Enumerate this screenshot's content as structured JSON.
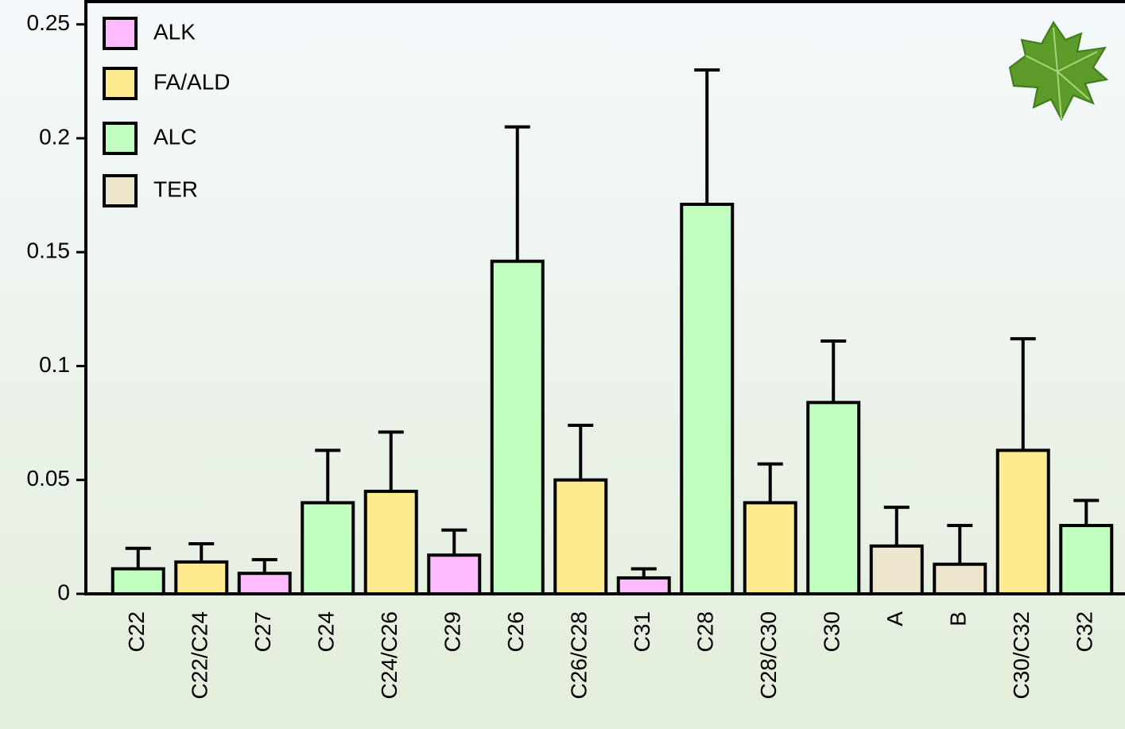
{
  "chart_data": {
    "type": "bar",
    "categories": [
      "C22",
      "C22/C24",
      "C27",
      "C24",
      "C24/C26",
      "C29",
      "C26",
      "C26/C28",
      "C31",
      "C28",
      "C28/C30",
      "C30",
      "A",
      "B",
      "C30/C32",
      "C32"
    ],
    "series": [
      {
        "name": "ALK",
        "color": "#ffbbff",
        "values": [
          null,
          null,
          0.009,
          null,
          null,
          0.017,
          null,
          null,
          0.007,
          null,
          null,
          null,
          null,
          null,
          null,
          null
        ],
        "errors": [
          null,
          null,
          0.006,
          null,
          null,
          0.011,
          null,
          null,
          0.004,
          null,
          null,
          null,
          null,
          null,
          null,
          null
        ]
      },
      {
        "name": "FA/ALD",
        "color": "#ffeb8f",
        "values": [
          null,
          0.014,
          null,
          null,
          0.045,
          null,
          null,
          0.05,
          null,
          null,
          0.04,
          null,
          null,
          null,
          0.063,
          null
        ],
        "errors": [
          null,
          0.008,
          null,
          null,
          0.026,
          null,
          null,
          0.024,
          null,
          null,
          0.017,
          null,
          null,
          null,
          0.049,
          null
        ]
      },
      {
        "name": "ALC",
        "color": "#c0ffc0",
        "values": [
          0.011,
          null,
          null,
          0.04,
          null,
          null,
          0.146,
          null,
          null,
          0.171,
          null,
          0.084,
          null,
          null,
          null,
          0.03
        ],
        "errors": [
          0.009,
          null,
          null,
          0.023,
          null,
          null,
          0.059,
          null,
          null,
          0.059,
          null,
          0.027,
          null,
          null,
          null,
          0.011
        ]
      },
      {
        "name": "TER",
        "color": "#eee6cc",
        "values": [
          null,
          null,
          null,
          null,
          null,
          null,
          null,
          null,
          null,
          null,
          null,
          null,
          0.021,
          0.013,
          null,
          null
        ],
        "errors": [
          null,
          null,
          null,
          null,
          null,
          null,
          null,
          null,
          null,
          null,
          null,
          null,
          0.017,
          0.017,
          null,
          null
        ]
      }
    ],
    "ylim": [
      0,
      0.26
    ],
    "yticks": [
      0,
      0.05,
      0.1,
      0.15,
      0.2,
      0.25
    ],
    "legend": "upper-left"
  }
}
